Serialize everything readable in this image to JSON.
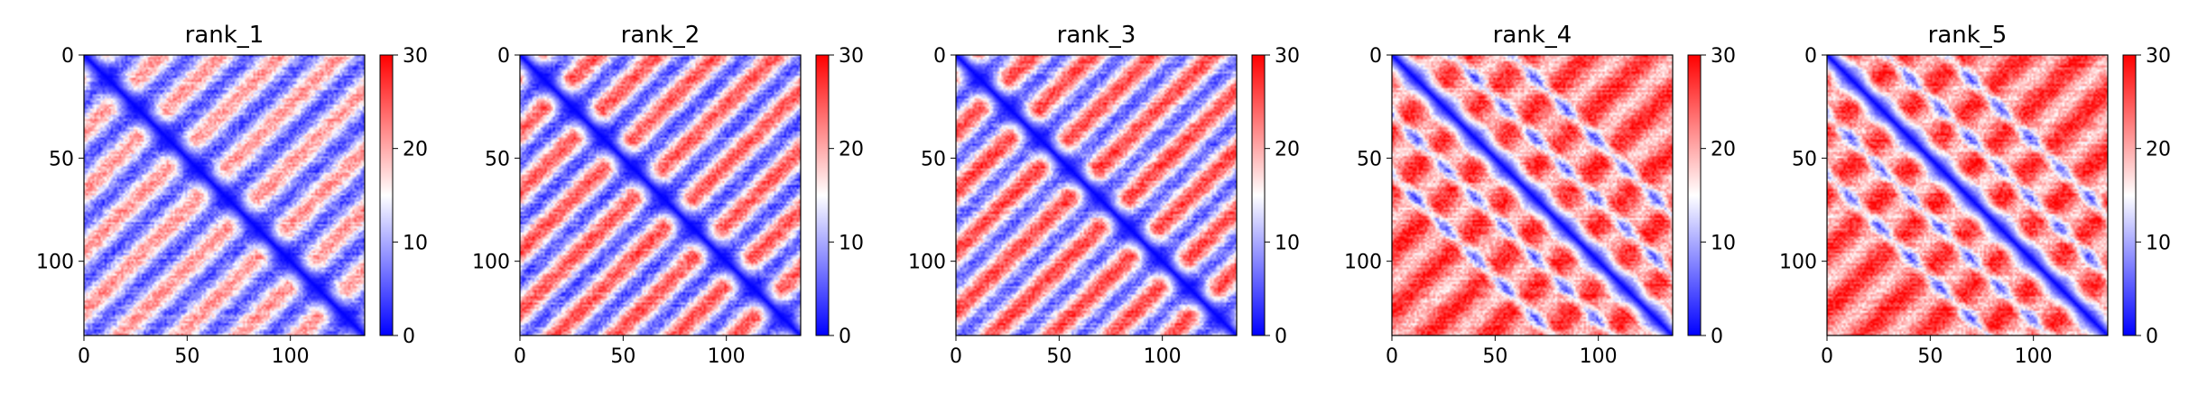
{
  "chart_data": [
    {
      "type": "heatmap",
      "title": "rank_1",
      "matrix_size": 136,
      "xticks": [
        0,
        50,
        100
      ],
      "yticks": [
        0,
        50,
        100
      ],
      "colorbar": {
        "min": 0,
        "max": 30,
        "ticks": [
          0,
          10,
          20,
          30
        ],
        "colormap": "bwr"
      },
      "diagonal_value": 0,
      "background_value": 13,
      "band_period": 29,
      "band_contrast": 8,
      "off_diagonals": []
    },
    {
      "type": "heatmap",
      "title": "rank_2",
      "matrix_size": 136,
      "xticks": [
        0,
        50,
        100
      ],
      "yticks": [
        0,
        50,
        100
      ],
      "colorbar": {
        "min": 0,
        "max": 30,
        "ticks": [
          0,
          10,
          20,
          30
        ],
        "colormap": "bwr"
      },
      "diagonal_value": 0,
      "background_value": 15,
      "band_period": 29,
      "band_contrast": 10,
      "off_diagonals": []
    },
    {
      "type": "heatmap",
      "title": "rank_3",
      "matrix_size": 136,
      "xticks": [
        0,
        50,
        100
      ],
      "yticks": [
        0,
        50,
        100
      ],
      "colorbar": {
        "min": 0,
        "max": 30,
        "ticks": [
          0,
          10,
          20,
          30
        ],
        "colormap": "bwr"
      },
      "diagonal_value": 0,
      "background_value": 16,
      "band_period": 29,
      "band_contrast": 10,
      "off_diagonals": []
    },
    {
      "type": "heatmap",
      "title": "rank_4",
      "matrix_size": 136,
      "xticks": [
        0,
        50,
        100
      ],
      "yticks": [
        0,
        50,
        100
      ],
      "colorbar": {
        "min": 0,
        "max": 30,
        "ticks": [
          0,
          10,
          20,
          30
        ],
        "colormap": "bwr"
      },
      "diagonal_value": 0,
      "background_value": 23,
      "band_period": 29,
      "band_contrast": 5,
      "off_diagonals": [
        29,
        58
      ]
    },
    {
      "type": "heatmap",
      "title": "rank_5",
      "matrix_size": 136,
      "xticks": [
        0,
        50,
        100
      ],
      "yticks": [
        0,
        50,
        100
      ],
      "colorbar": {
        "min": 0,
        "max": 30,
        "ticks": [
          0,
          10,
          20,
          30
        ],
        "colormap": "bwr"
      },
      "diagonal_value": 0,
      "background_value": 23,
      "band_period": 29,
      "band_contrast": 5,
      "off_diagonals": [
        29,
        58
      ]
    }
  ]
}
